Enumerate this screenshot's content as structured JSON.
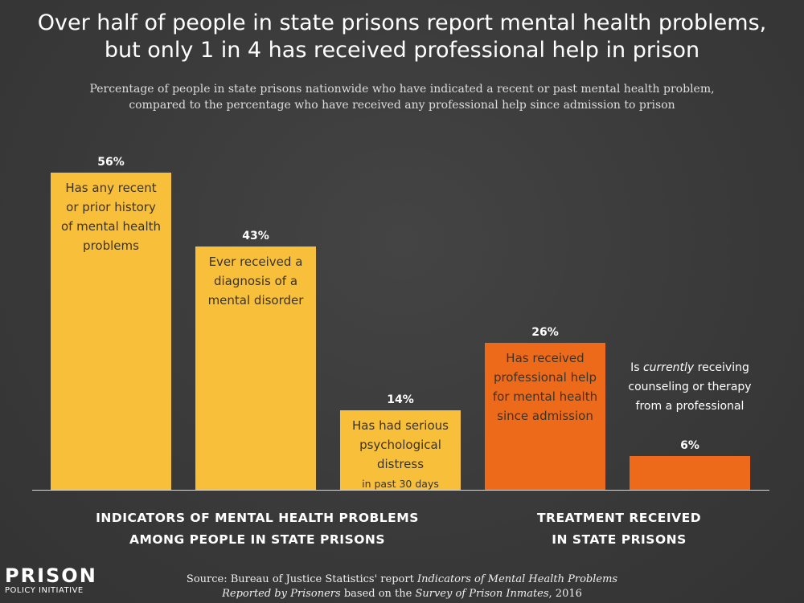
{
  "title_line1": "Over half of people in state prisons report mental health problems,",
  "title_line2": "but only 1 in 4 has received professional help in prison",
  "subtitle_line1": "Percentage of people in state prisons nationwide who have indicated a recent or past mental health problem,",
  "subtitle_line2": "compared to the percentage who have received any professional help since admission to prison",
  "chart_data": {
    "type": "bar",
    "title": "Over half of people in state prisons report mental health problems, but only 1 in 4 has received professional help in prison",
    "ylim": [
      0,
      56
    ],
    "unit": "%",
    "categories": [
      "Has any recent or prior history of mental health problems",
      "Ever received a diagnosis of a mental disorder",
      "Has had serious psychological distress in past 30 days",
      "Has received professional help for mental health since admission",
      "Is currently receiving counseling or therapy from a professional"
    ],
    "values": [
      56,
      43,
      14,
      26,
      6
    ],
    "bars": [
      {
        "value": 56,
        "value_label": "56%",
        "group": "indicators",
        "color": "#f7bf3a",
        "label_lines": [
          "Has any recent",
          "or prior history",
          "of mental health",
          "problems"
        ],
        "note": "",
        "label_position": "inside"
      },
      {
        "value": 43,
        "value_label": "43%",
        "group": "indicators",
        "color": "#f7bf3a",
        "label_lines": [
          "Ever received a",
          "diagnosis of a",
          "mental disorder"
        ],
        "note": "",
        "label_position": "inside"
      },
      {
        "value": 14,
        "value_label": "14%",
        "group": "indicators",
        "color": "#f7bf3a",
        "label_lines": [
          "Has had serious",
          "psychological",
          "distress"
        ],
        "note": "in past 30 days",
        "label_position": "inside"
      },
      {
        "value": 26,
        "value_label": "26%",
        "group": "treatment",
        "color": "#ee6a1b",
        "label_lines": [
          "Has received",
          "professional help",
          "for mental health",
          "since admission"
        ],
        "note": "",
        "label_position": "inside"
      },
      {
        "value": 6,
        "value_label": "6%",
        "group": "treatment",
        "color": "#ee6a1b",
        "label_lines": [
          "Is currently receiving",
          "counseling or therapy",
          "from a professional"
        ],
        "note": "",
        "label_position": "above"
      }
    ],
    "group_labels": {
      "indicators": [
        "INDICATORS OF MENTAL HEALTH PROBLEMS",
        "AMONG PEOPLE IN STATE PRISONS"
      ],
      "treatment": [
        "TREATMENT RECEIVED",
        "IN STATE PRISONS"
      ]
    },
    "colors": {
      "indicators": "#f7bf3a",
      "treatment": "#ee6a1b",
      "label_dark": "#3b3326",
      "axis": "#d8d8d8"
    }
  },
  "logo": {
    "main": "PRISON",
    "sub": "POLICY INITIATIVE"
  },
  "source": {
    "line1_prefix": "Source: Bureau of Justice Statistics' report ",
    "line1_italic": "Indicators of Mental Health Problems",
    "line2_italic1": "Reported by Prisoners",
    "line2_mid": " based on the ",
    "line2_italic2": "Survey of Prison Inmates",
    "line2_suffix": ", 2016"
  }
}
